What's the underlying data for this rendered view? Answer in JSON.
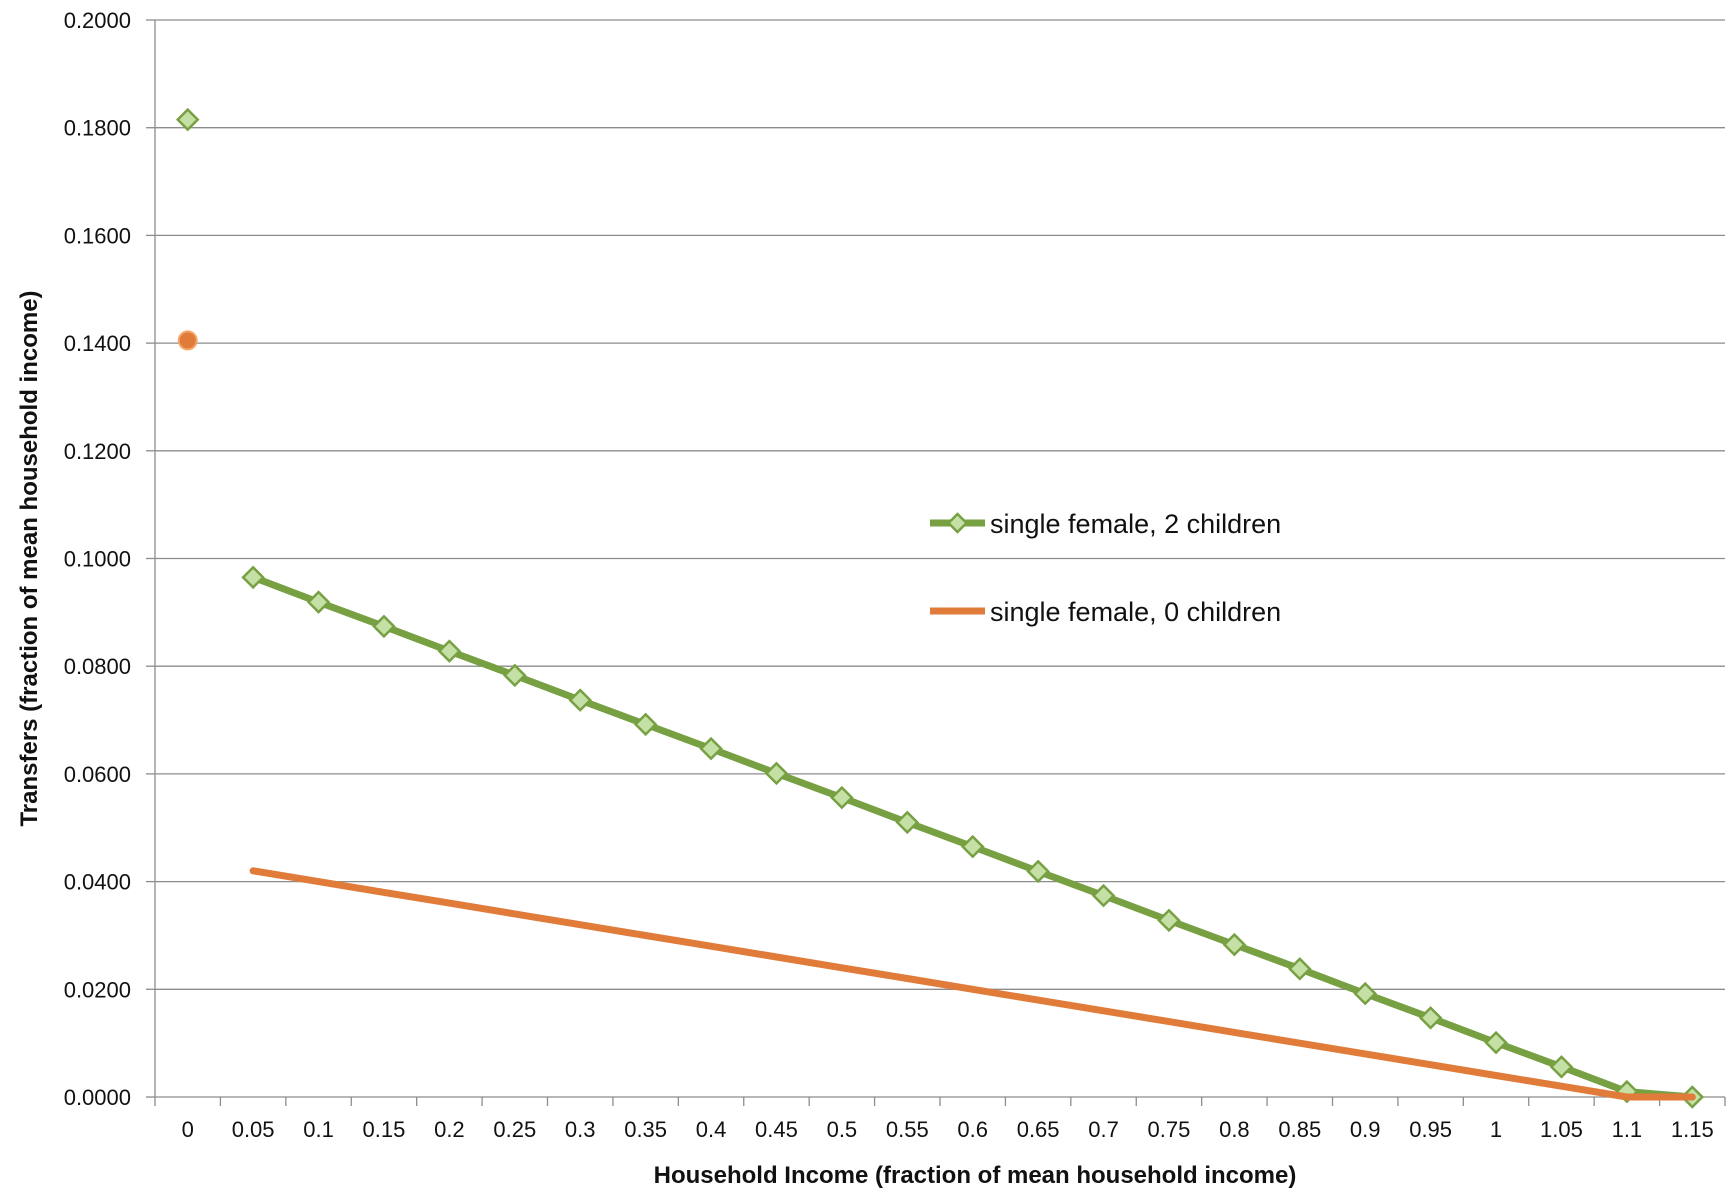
{
  "chart_data": {
    "type": "line",
    "title": "",
    "xlabel": "Household Income  (fraction of mean household income)",
    "ylabel": "Transfers (fraction of mean household income)",
    "categories": [
      "0",
      "0.05",
      "0.1",
      "0.15",
      "0.2",
      "0.25",
      "0.3",
      "0.35",
      "0.4",
      "0.45",
      "0.5",
      "0.55",
      "0.6",
      "0.65",
      "0.7",
      "0.75",
      "0.8",
      "0.85",
      "0.9",
      "0.95",
      "1",
      "1.05",
      "1.1",
      "1.15"
    ],
    "y_ticks": [
      "0.0000",
      "0.0200",
      "0.0400",
      "0.0600",
      "0.0800",
      "0.1000",
      "0.1200",
      "0.1400",
      "0.1600",
      "0.1800",
      "0.2000"
    ],
    "ylim": [
      0,
      0.2
    ],
    "grid": "horizontal",
    "legend_position": "center-right",
    "series": [
      {
        "name": "single female, 2 children",
        "color": "#77a043",
        "marker": "diamond",
        "marker_fill": "#c5e0a5",
        "values": [
          0.1815,
          0.0965,
          0.0919,
          0.0874,
          0.0828,
          0.0783,
          0.0737,
          0.0692,
          0.0647,
          0.0601,
          0.0556,
          0.051,
          0.0465,
          0.0419,
          0.0374,
          0.0328,
          0.0283,
          0.0238,
          0.0192,
          0.0147,
          0.0101,
          0.0056,
          0.001,
          0.0
        ]
      },
      {
        "name": "single female, 0 children",
        "color": "#e07b39",
        "marker": "none",
        "first_point_marker": "circle",
        "values": [
          0.1405,
          0.042,
          0.04,
          0.038,
          0.036,
          0.034,
          0.032,
          0.03,
          0.028,
          0.026,
          0.024,
          0.022,
          0.02,
          0.018,
          0.016,
          0.014,
          0.012,
          0.01,
          0.008,
          0.006,
          0.004,
          0.002,
          0.0,
          0.0
        ]
      }
    ]
  }
}
